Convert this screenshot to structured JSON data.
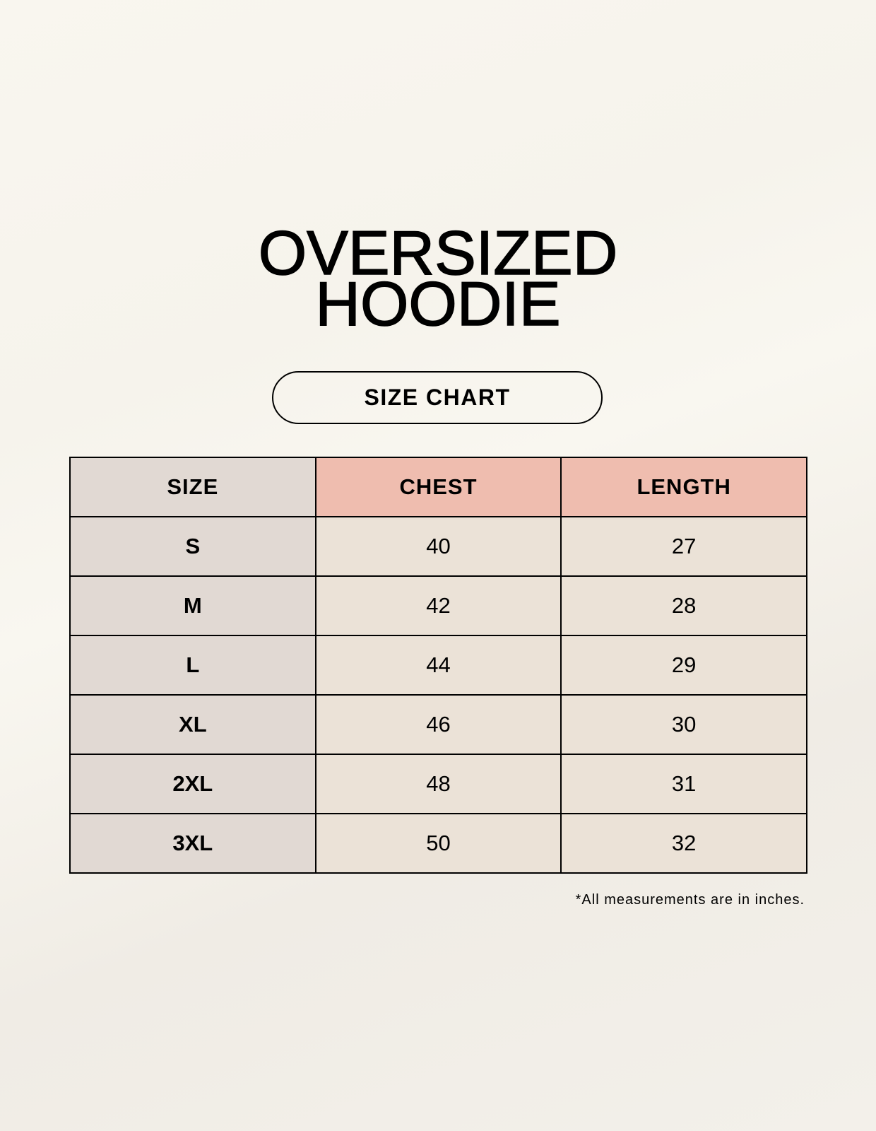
{
  "title_line1": "OVERSIZED",
  "title_line2": "HOODIE",
  "subtitle": "SIZE CHART",
  "table": {
    "headers": [
      "SIZE",
      "CHEST",
      "LENGTH"
    ],
    "rows": [
      [
        "S",
        "40",
        "27"
      ],
      [
        "M",
        "42",
        "28"
      ],
      [
        "L",
        "44",
        "29"
      ],
      [
        "XL",
        "46",
        "30"
      ],
      [
        "2XL",
        "48",
        "31"
      ],
      [
        "3XL",
        "50",
        "32"
      ]
    ]
  },
  "note": "*All measurements are in inches.",
  "colors": {
    "size_column": "#e1d9d3",
    "header_accent": "#efbdaf",
    "value_cells": "#ebe2d7"
  }
}
